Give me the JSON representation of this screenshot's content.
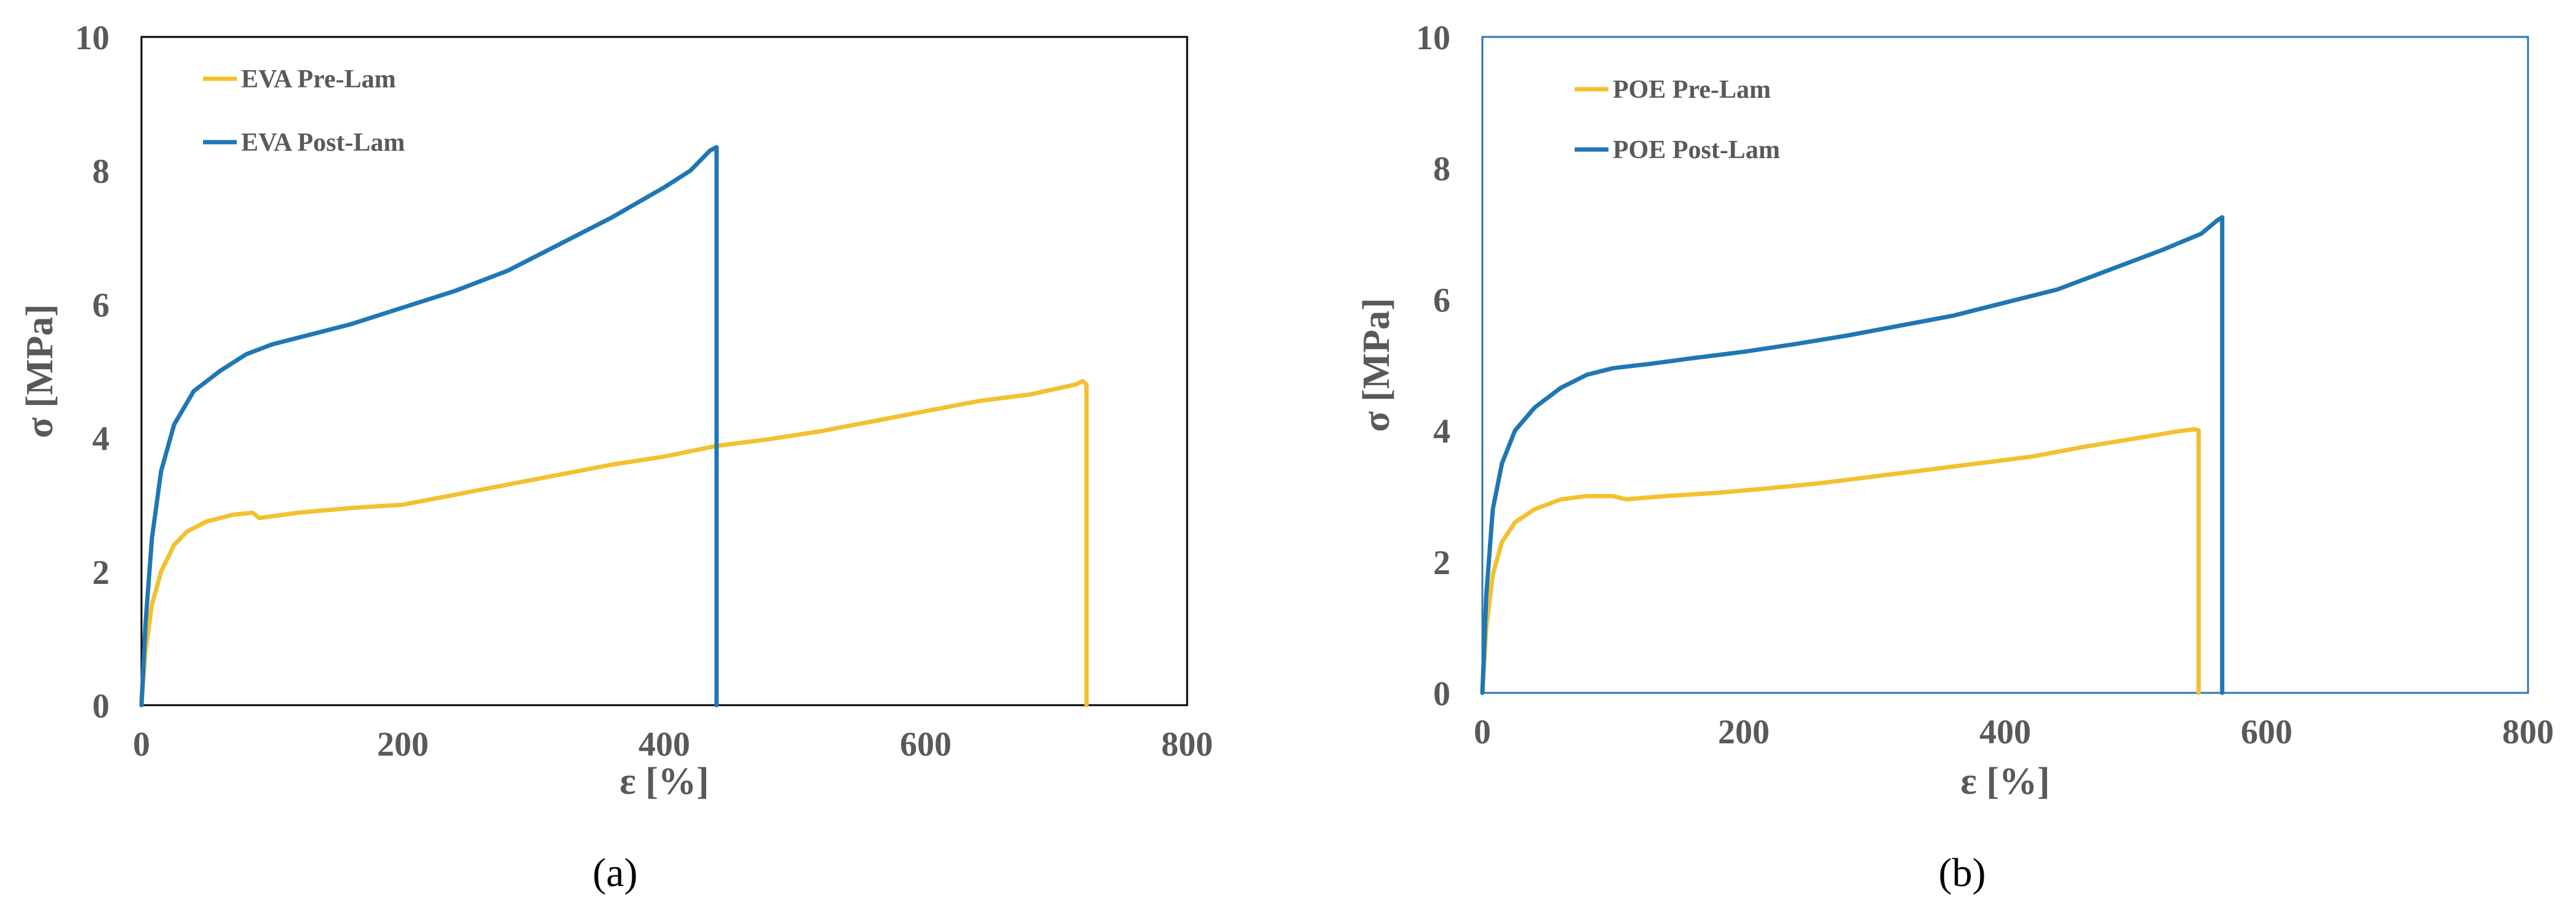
{
  "chart_data": [
    {
      "type": "line",
      "panel": "a",
      "caption": "(a)",
      "title": "",
      "xlabel": "ε [%]",
      "ylabel": "σ [MPa]",
      "xlim": [
        0,
        800
      ],
      "ylim": [
        0,
        10
      ],
      "xticks": [
        0,
        200,
        400,
        600,
        800
      ],
      "yticks": [
        0,
        2,
        4,
        6,
        8,
        10
      ],
      "legend_position": "top-left",
      "frame_color": "#000000",
      "series": [
        {
          "name": "EVA Pre-Lam",
          "color": "#F2C12E",
          "x": [
            0,
            3,
            8,
            15,
            25,
            35,
            50,
            70,
            85,
            90,
            120,
            160,
            200,
            240,
            280,
            320,
            360,
            400,
            440,
            480,
            520,
            560,
            600,
            640,
            680,
            715,
            720,
            723,
            723
          ],
          "y": [
            0,
            0.8,
            1.5,
            2.0,
            2.4,
            2.6,
            2.75,
            2.85,
            2.88,
            2.8,
            2.88,
            2.95,
            3.0,
            3.15,
            3.3,
            3.45,
            3.6,
            3.72,
            3.88,
            3.98,
            4.1,
            4.25,
            4.4,
            4.55,
            4.65,
            4.8,
            4.85,
            4.8,
            0
          ]
        },
        {
          "name": "EVA Post-Lam",
          "color": "#1F77B4",
          "x": [
            0,
            3,
            8,
            15,
            25,
            40,
            60,
            80,
            100,
            130,
            160,
            200,
            240,
            280,
            320,
            360,
            400,
            420,
            435,
            440,
            440
          ],
          "y": [
            0,
            1.2,
            2.5,
            3.5,
            4.2,
            4.7,
            5.0,
            5.25,
            5.4,
            5.55,
            5.7,
            5.95,
            6.2,
            6.5,
            6.9,
            7.3,
            7.75,
            8.0,
            8.3,
            8.35,
            0
          ]
        }
      ]
    },
    {
      "type": "line",
      "panel": "b",
      "caption": "(b)",
      "title": "",
      "xlabel": "ε [%]",
      "ylabel": "σ [MPa]",
      "xlim": [
        0,
        800
      ],
      "ylim": [
        0,
        10
      ],
      "xticks": [
        0,
        200,
        400,
        600,
        800
      ],
      "yticks": [
        0,
        2,
        4,
        6,
        8,
        10
      ],
      "legend_position": "top-left",
      "frame_color": "#2E75B6",
      "series": [
        {
          "name": "POE Pre-Lam",
          "color": "#F2C12E",
          "x": [
            0,
            3,
            8,
            15,
            25,
            40,
            60,
            80,
            100,
            110,
            140,
            180,
            220,
            260,
            300,
            340,
            380,
            420,
            460,
            500,
            530,
            545,
            548,
            548
          ],
          "y": [
            0,
            1.0,
            1.8,
            2.3,
            2.6,
            2.8,
            2.95,
            3.0,
            3.0,
            2.95,
            3.0,
            3.05,
            3.12,
            3.2,
            3.3,
            3.4,
            3.5,
            3.6,
            3.75,
            3.88,
            3.98,
            4.02,
            4.0,
            0
          ]
        },
        {
          "name": "POE Post-Lam",
          "color": "#1F77B4",
          "x": [
            0,
            3,
            8,
            15,
            25,
            40,
            60,
            80,
            100,
            130,
            160,
            200,
            240,
            280,
            320,
            360,
            400,
            440,
            480,
            520,
            550,
            562,
            566,
            566
          ],
          "y": [
            0,
            1.5,
            2.8,
            3.5,
            4.0,
            4.35,
            4.65,
            4.85,
            4.95,
            5.02,
            5.1,
            5.2,
            5.32,
            5.45,
            5.6,
            5.75,
            5.95,
            6.15,
            6.45,
            6.75,
            7.0,
            7.2,
            7.25,
            0
          ]
        }
      ]
    }
  ]
}
